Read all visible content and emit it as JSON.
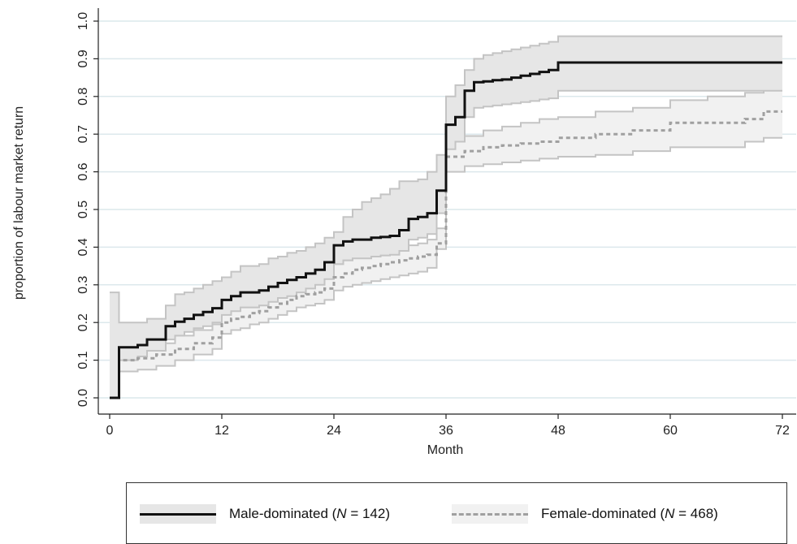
{
  "chart_data": {
    "type": "line",
    "title": "",
    "xlabel": "Month",
    "ylabel": "proportion of labour market return",
    "xlim": [
      0,
      72
    ],
    "ylim": [
      0,
      1
    ],
    "x_ticks": [
      0,
      12,
      24,
      36,
      48,
      60,
      72
    ],
    "y_ticks": [
      "0.0",
      "0.1",
      "0.2",
      "0.3",
      "0.4",
      "0.5",
      "0.6",
      "0.7",
      "0.8",
      "0.9",
      "1.0"
    ],
    "grid": "horizontal",
    "legend_position": "bottom",
    "series": [
      {
        "name": "Male-dominated",
        "n_label": "N",
        "n_value": "= 142)",
        "line_color": "#111111",
        "band_color": "#e6e6e6",
        "line_style": "solid",
        "x": [
          0,
          1,
          3,
          4,
          6,
          7,
          8,
          9,
          10,
          11,
          12,
          13,
          14,
          16,
          17,
          18,
          19,
          20,
          21,
          22,
          23,
          24,
          25,
          26,
          27,
          28,
          29,
          30,
          31,
          32,
          33,
          34,
          35,
          36,
          37,
          38,
          39,
          40,
          41,
          42,
          43,
          44,
          45,
          46,
          47,
          48,
          72
        ],
        "y": [
          0,
          0.134,
          0.14,
          0.155,
          0.19,
          0.202,
          0.21,
          0.22,
          0.228,
          0.238,
          0.26,
          0.27,
          0.28,
          0.285,
          0.295,
          0.305,
          0.313,
          0.32,
          0.33,
          0.34,
          0.36,
          0.405,
          0.415,
          0.42,
          0.42,
          0.425,
          0.427,
          0.43,
          0.445,
          0.475,
          0.48,
          0.49,
          0.55,
          0.725,
          0.745,
          0.815,
          0.838,
          0.84,
          0.843,
          0.845,
          0.85,
          0.855,
          0.86,
          0.865,
          0.87,
          0.89,
          0.89
        ],
        "ci_lower": [
          0,
          0.1,
          0.11,
          0.125,
          0.155,
          0.165,
          0.175,
          0.185,
          0.19,
          0.2,
          0.22,
          0.23,
          0.24,
          0.245,
          0.255,
          0.265,
          0.27,
          0.28,
          0.29,
          0.3,
          0.315,
          0.355,
          0.365,
          0.37,
          0.37,
          0.375,
          0.378,
          0.38,
          0.39,
          0.42,
          0.425,
          0.435,
          0.49,
          0.66,
          0.68,
          0.745,
          0.77,
          0.773,
          0.776,
          0.779,
          0.782,
          0.785,
          0.788,
          0.792,
          0.795,
          0.815,
          0.815
        ],
        "ci_upper": [
          0.28,
          0.2,
          0.2,
          0.21,
          0.245,
          0.275,
          0.28,
          0.29,
          0.3,
          0.31,
          0.32,
          0.335,
          0.35,
          0.355,
          0.37,
          0.375,
          0.385,
          0.39,
          0.4,
          0.41,
          0.425,
          0.44,
          0.48,
          0.5,
          0.52,
          0.53,
          0.54,
          0.555,
          0.575,
          0.575,
          0.58,
          0.6,
          0.645,
          0.8,
          0.83,
          0.87,
          0.9,
          0.91,
          0.915,
          0.92,
          0.925,
          0.93,
          0.935,
          0.94,
          0.945,
          0.96,
          0.96
        ]
      },
      {
        "name": "Female-dominated",
        "n_label": "N",
        "n_value": "= 468)",
        "line_color": "#a0a0a0",
        "band_color": "#f1f1f1",
        "line_style": "dashed",
        "x": [
          0,
          1,
          3,
          5,
          7,
          9,
          11,
          12,
          13,
          14,
          15,
          16,
          17,
          18,
          19,
          20,
          21,
          22,
          23,
          24,
          25,
          26,
          27,
          28,
          29,
          30,
          31,
          32,
          33,
          34,
          35,
          36,
          38,
          40,
          42,
          44,
          46,
          48,
          52,
          56,
          60,
          64,
          68,
          70,
          72
        ],
        "y": [
          0,
          0.1,
          0.105,
          0.115,
          0.13,
          0.145,
          0.16,
          0.2,
          0.21,
          0.215,
          0.225,
          0.23,
          0.24,
          0.25,
          0.26,
          0.27,
          0.275,
          0.28,
          0.29,
          0.32,
          0.33,
          0.34,
          0.345,
          0.35,
          0.355,
          0.36,
          0.365,
          0.37,
          0.375,
          0.38,
          0.41,
          0.64,
          0.655,
          0.665,
          0.67,
          0.675,
          0.68,
          0.69,
          0.7,
          0.71,
          0.73,
          0.73,
          0.74,
          0.76,
          0.76
        ],
        "ci_lower": [
          0,
          0.07,
          0.075,
          0.085,
          0.1,
          0.115,
          0.13,
          0.17,
          0.18,
          0.185,
          0.195,
          0.2,
          0.21,
          0.22,
          0.23,
          0.24,
          0.245,
          0.25,
          0.26,
          0.285,
          0.295,
          0.3,
          0.305,
          0.31,
          0.315,
          0.32,
          0.325,
          0.33,
          0.335,
          0.345,
          0.395,
          0.6,
          0.615,
          0.62,
          0.625,
          0.63,
          0.635,
          0.64,
          0.645,
          0.655,
          0.665,
          0.665,
          0.68,
          0.69,
          0.69
        ],
        "ci_upper": [
          0.2,
          0.13,
          0.135,
          0.145,
          0.165,
          0.18,
          0.195,
          0.23,
          0.24,
          0.245,
          0.255,
          0.26,
          0.27,
          0.28,
          0.29,
          0.3,
          0.305,
          0.31,
          0.32,
          0.355,
          0.365,
          0.375,
          0.38,
          0.385,
          0.39,
          0.395,
          0.4,
          0.405,
          0.41,
          0.42,
          0.45,
          0.68,
          0.695,
          0.71,
          0.72,
          0.73,
          0.74,
          0.745,
          0.76,
          0.77,
          0.79,
          0.8,
          0.81,
          0.83,
          0.83
        ]
      }
    ]
  }
}
